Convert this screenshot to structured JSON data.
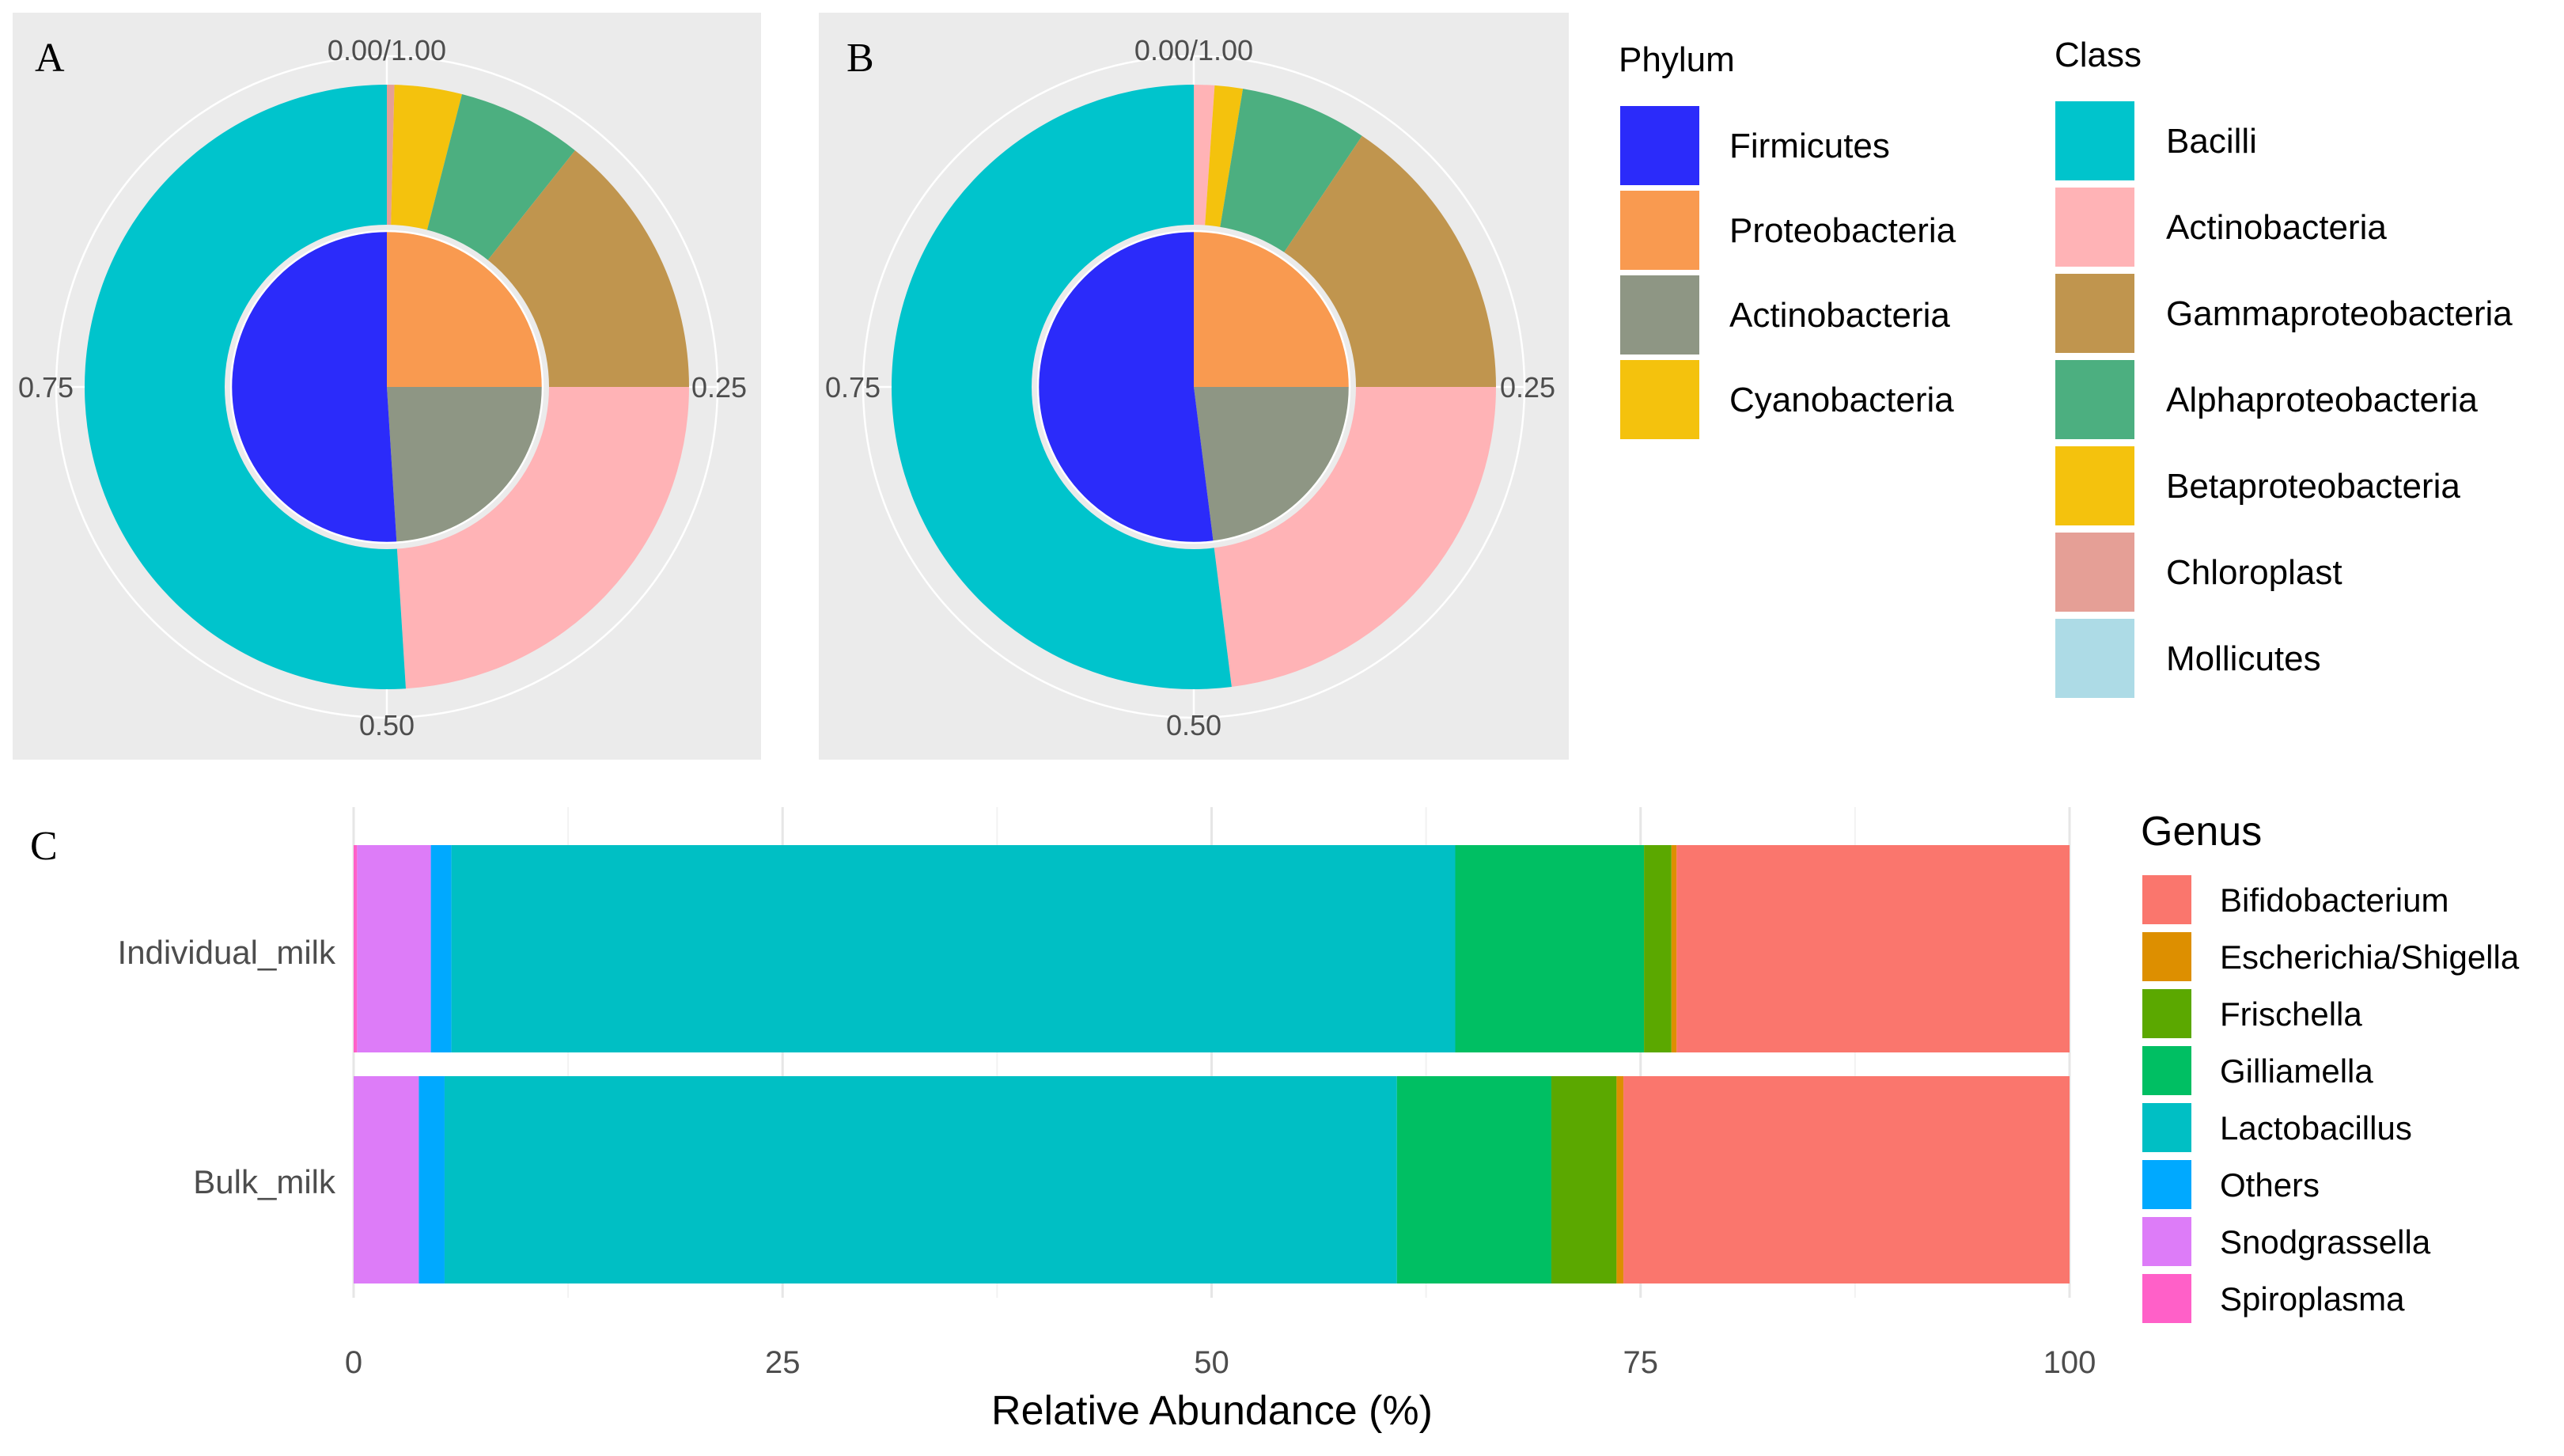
{
  "chart_data": [
    {
      "type": "pie",
      "panel": "A",
      "style": "nested donut (inner ring = phylum, outer ring = class)",
      "ticks": [
        "0.00/1.00",
        "0.25",
        "0.50",
        "0.75"
      ],
      "inner": [
        {
          "label": "Proteobacteria",
          "value": 0.25
        },
        {
          "label": "Actinobacteria",
          "value": 0.24
        },
        {
          "label": "Firmicutes",
          "value": 0.51
        }
      ],
      "outer": [
        {
          "label": "Chloroplast",
          "value": 0.004
        },
        {
          "label": "Betaproteobacteria",
          "value": 0.036
        },
        {
          "label": "Alphaproteobacteria",
          "value": 0.067
        },
        {
          "label": "Gammaproteobacteria",
          "value": 0.143
        },
        {
          "label": "Actinobacteria",
          "value": 0.24
        },
        {
          "label": "Bacilli",
          "value": 0.51
        }
      ]
    },
    {
      "type": "pie",
      "panel": "B",
      "style": "nested donut (inner ring = phylum, outer ring = class)",
      "ticks": [
        "0.00/1.00",
        "0.25",
        "0.50",
        "0.75"
      ],
      "inner": [
        {
          "label": "Proteobacteria",
          "value": 0.25
        },
        {
          "label": "Actinobacteria",
          "value": 0.23
        },
        {
          "label": "Firmicutes",
          "value": 0.52
        }
      ],
      "outer": [
        {
          "label": "Actinobacteria",
          "value": 0.011
        },
        {
          "label": "Betaproteobacteria",
          "value": 0.015
        },
        {
          "label": "Alphaproteobacteria",
          "value": 0.068
        },
        {
          "label": "Gammaproteobacteria",
          "value": 0.156
        },
        {
          "label": "Actinobacteria",
          "value": 0.23
        },
        {
          "label": "Bacilli",
          "value": 0.52
        }
      ]
    },
    {
      "type": "bar",
      "panel": "C",
      "orientation": "horizontal stacked",
      "categories": [
        "Individual_milk",
        "Bulk_milk"
      ],
      "xlabel": "Relative Abundance (%)",
      "xlim": [
        0,
        100
      ],
      "xticks": [
        "0",
        "25",
        "50",
        "75",
        "100"
      ],
      "series": [
        {
          "name": "Spiroplasma",
          "values": [
            0.2,
            0
          ]
        },
        {
          "name": "Snodgrassella",
          "values": [
            4.3,
            3.8
          ]
        },
        {
          "name": "Others",
          "values": [
            1.2,
            1.5
          ]
        },
        {
          "name": "Lactobacillus",
          "values": [
            58.5,
            55.5
          ]
        },
        {
          "name": "Gilliamella",
          "values": [
            11.0,
            9.0
          ]
        },
        {
          "name": "Frischella",
          "values": [
            1.6,
            3.8
          ]
        },
        {
          "name": "Escherichia/Shigella",
          "values": [
            0.3,
            0.4
          ]
        },
        {
          "name": "Bifidobacterium",
          "values": [
            22.9,
            26.0
          ]
        }
      ]
    }
  ],
  "panel_labels": {
    "a": "A",
    "b": "B",
    "c": "C"
  },
  "phylum_legend": {
    "title": "Phylum",
    "items": [
      {
        "label": "Firmicutes",
        "color": "#2b2bfa"
      },
      {
        "label": "Proteobacteria",
        "color": "#f99a50"
      },
      {
        "label": "Actinobacteria",
        "color": "#8e9684"
      },
      {
        "label": "Cyanobacteria",
        "color": "#f4c20d"
      }
    ]
  },
  "class_legend": {
    "title": "Class",
    "items": [
      {
        "label": "Bacilli",
        "color": "#00c4cc"
      },
      {
        "label": "Actinobacteria",
        "color": "#ffb3b6"
      },
      {
        "label": "Gammaproteobacteria",
        "color": "#c0954e"
      },
      {
        "label": "Alphaproteobacteria",
        "color": "#4caf80"
      },
      {
        "label": "Betaproteobacteria",
        "color": "#f4c20d"
      },
      {
        "label": "Chloroplast",
        "color": "#e59f96"
      },
      {
        "label": "Mollicutes",
        "color": "#addbe6"
      }
    ]
  },
  "genus_legend": {
    "title": "Genus",
    "items": [
      {
        "label": "Bifidobacterium",
        "color": "#fa766d"
      },
      {
        "label": "Escherichia/Shigella",
        "color": "#dd8f00"
      },
      {
        "label": "Frischella",
        "color": "#5ba800"
      },
      {
        "label": "Gilliamella",
        "color": "#00bf63"
      },
      {
        "label": "Lactobacillus",
        "color": "#00bfc4"
      },
      {
        "label": "Others",
        "color": "#00a9ff"
      },
      {
        "label": "Snodgrassella",
        "color": "#dd7cf8"
      },
      {
        "label": "Spiroplasma",
        "color": "#ff60c8"
      }
    ]
  },
  "colors": {
    "Firmicutes": "#2b2bfa",
    "Proteobacteria": "#f99a50",
    "Actinobacteria_phylum": "#8e9684",
    "Bacilli": "#00c4cc",
    "Actinobacteria": "#ffb3b6",
    "Gammaproteobacteria": "#c0954e",
    "Alphaproteobacteria": "#4caf80",
    "Betaproteobacteria": "#f4c20d",
    "Chloroplast": "#e59f96",
    "Spiroplasma": "#ff60c8",
    "Snodgrassella": "#dd7cf8",
    "Others": "#00a9ff",
    "Lactobacillus": "#00bfc4",
    "Gilliamella": "#00bf63",
    "Frischella": "#5ba800",
    "Escherichia/Shigella": "#dd8f00",
    "Bifidobacterium": "#fa766d"
  }
}
